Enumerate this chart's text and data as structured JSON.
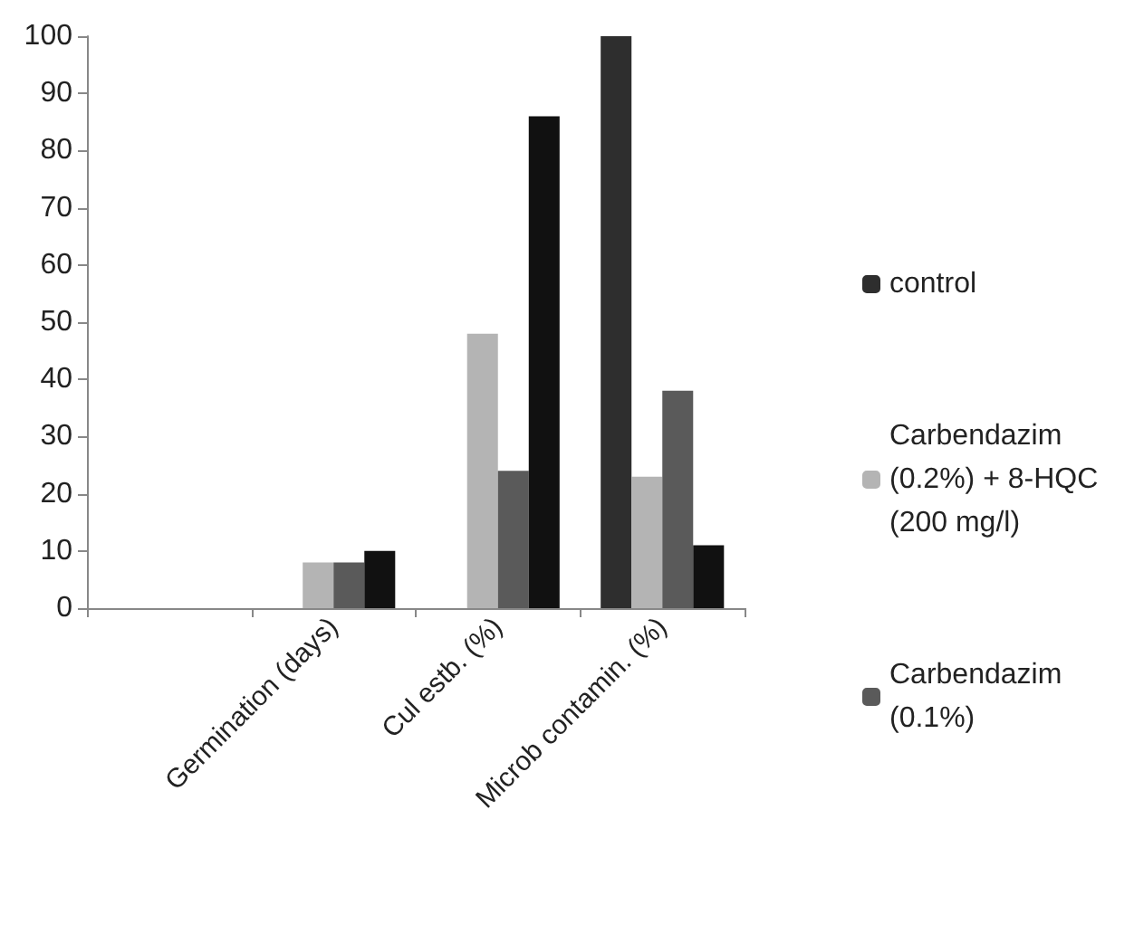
{
  "chart_data": {
    "type": "bar",
    "categories": [
      null,
      "Germination (days)",
      "Cul estb. (%)",
      "Microb contamin. (%)"
    ],
    "series": [
      {
        "name": "control",
        "color": "#2e2e2e",
        "values": [
          0,
          0,
          0,
          100
        ]
      },
      {
        "name": "Carbendazim (0.2%) + 8-HQC (200 mg/l)",
        "color": "#b4b4b4",
        "values": [
          0,
          8,
          48,
          23
        ]
      },
      {
        "name": "Carbendazim (0.1%)",
        "color": "#5a5a5a",
        "values": [
          0,
          8,
          24,
          38
        ]
      },
      {
        "color": "#111111",
        "values": [
          0,
          10,
          86,
          11
        ]
      }
    ],
    "ylim": [
      0,
      100
    ],
    "yticks": [
      0,
      10,
      20,
      30,
      40,
      50,
      60,
      70,
      80,
      90,
      100
    ],
    "grid": false,
    "legend": "right"
  }
}
